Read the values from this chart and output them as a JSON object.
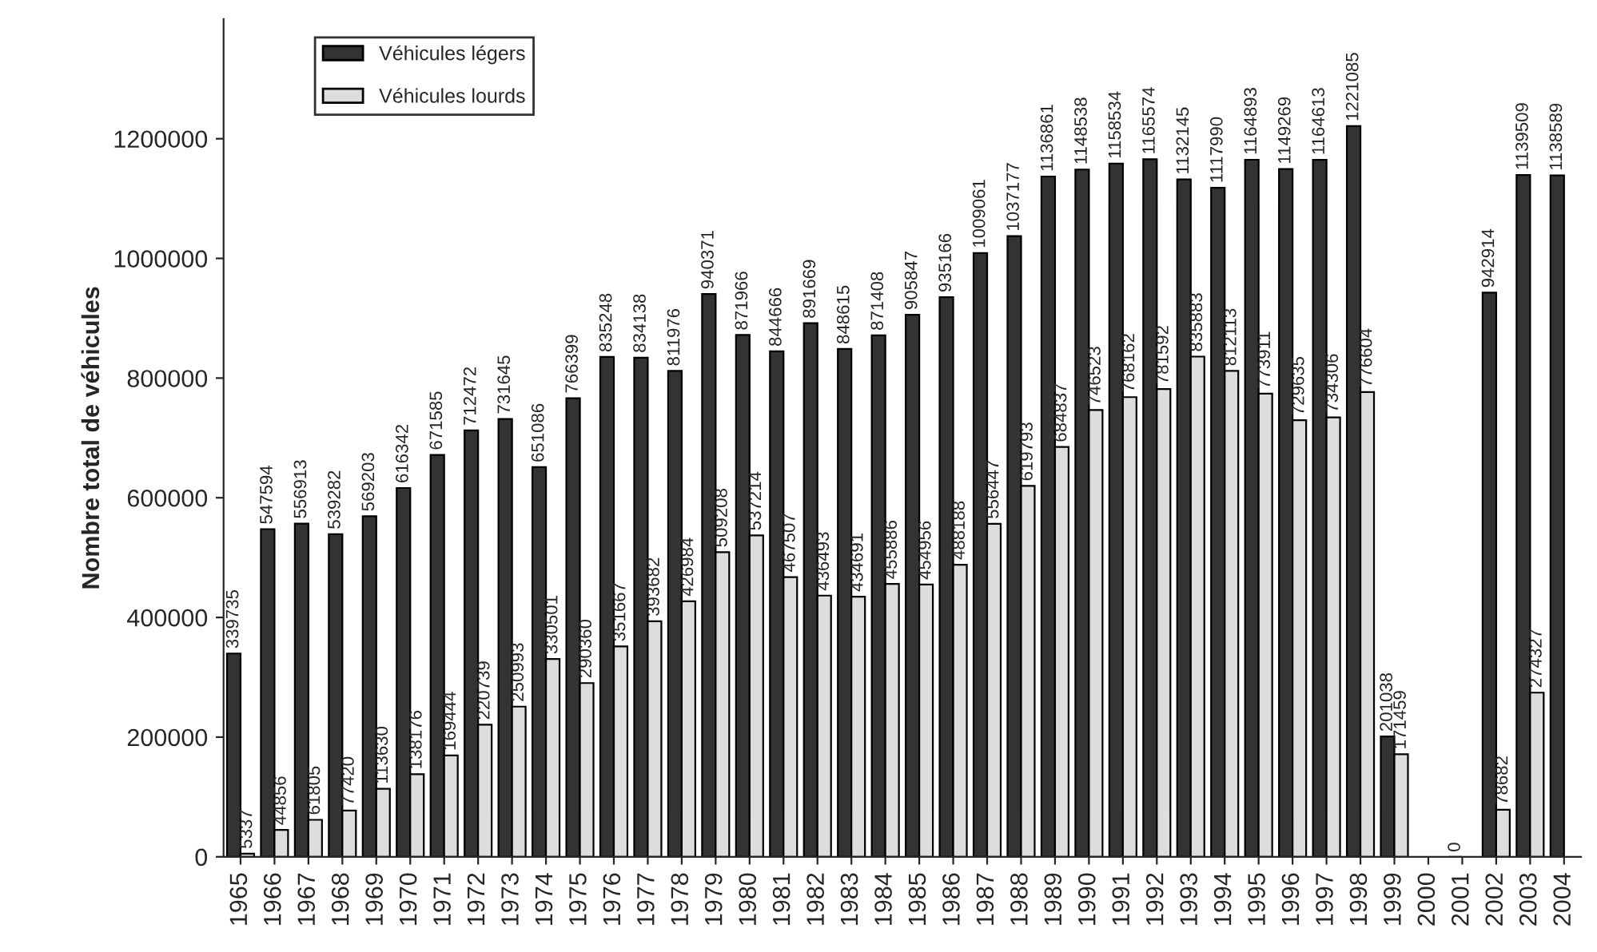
{
  "chart_data": {
    "type": "bar",
    "ylabel": "Nombre total de véhicules",
    "categories": [
      "1965",
      "1966",
      "1967",
      "1968",
      "1969",
      "1970",
      "1971",
      "1972",
      "1973",
      "1974",
      "1975",
      "1976",
      "1977",
      "1978",
      "1979",
      "1980",
      "1981",
      "1982",
      "1983",
      "1984",
      "1985",
      "1986",
      "1987",
      "1988",
      "1989",
      "1990",
      "1991",
      "1992",
      "1993",
      "1994",
      "1995",
      "1996",
      "1997",
      "1998",
      "1999",
      "2000",
      "2001",
      "2002",
      "2003",
      "2004"
    ],
    "series": [
      {
        "name": "Véhicules légers",
        "color": "#333333",
        "values": [
          339735,
          547594,
          556913,
          539282,
          569203,
          616342,
          671585,
          712472,
          731645,
          651086,
          766399,
          835248,
          834138,
          811976,
          940371,
          871966,
          844666,
          891669,
          848615,
          871408,
          905847,
          935166,
          1009061,
          1037177,
          1136861,
          1148538,
          1158534,
          1165574,
          1132145,
          1117990,
          1164893,
          1149269,
          1164613,
          1221085,
          201038,
          null,
          0,
          942914,
          1139509,
          1138589
        ]
      },
      {
        "name": "Véhicules lourds",
        "color": "#dddddd",
        "values": [
          5337,
          44856,
          61805,
          77420,
          113630,
          138176,
          169444,
          220739,
          250993,
          330501,
          290360,
          351667,
          393682,
          426984,
          509208,
          537214,
          467507,
          436493,
          434691,
          455886,
          454956,
          488188,
          556447,
          619793,
          684837,
          746523,
          768162,
          781592,
          835883,
          812113,
          773911,
          729635,
          734306,
          776604,
          171459,
          null,
          null,
          78682,
          274327,
          null
        ]
      }
    ],
    "ylim": [
      0,
      1400000
    ],
    "yticks": [
      0,
      200000,
      400000,
      600000,
      800000,
      1000000,
      1200000
    ],
    "data_labels": true,
    "legend": "top left",
    "grid": false
  }
}
